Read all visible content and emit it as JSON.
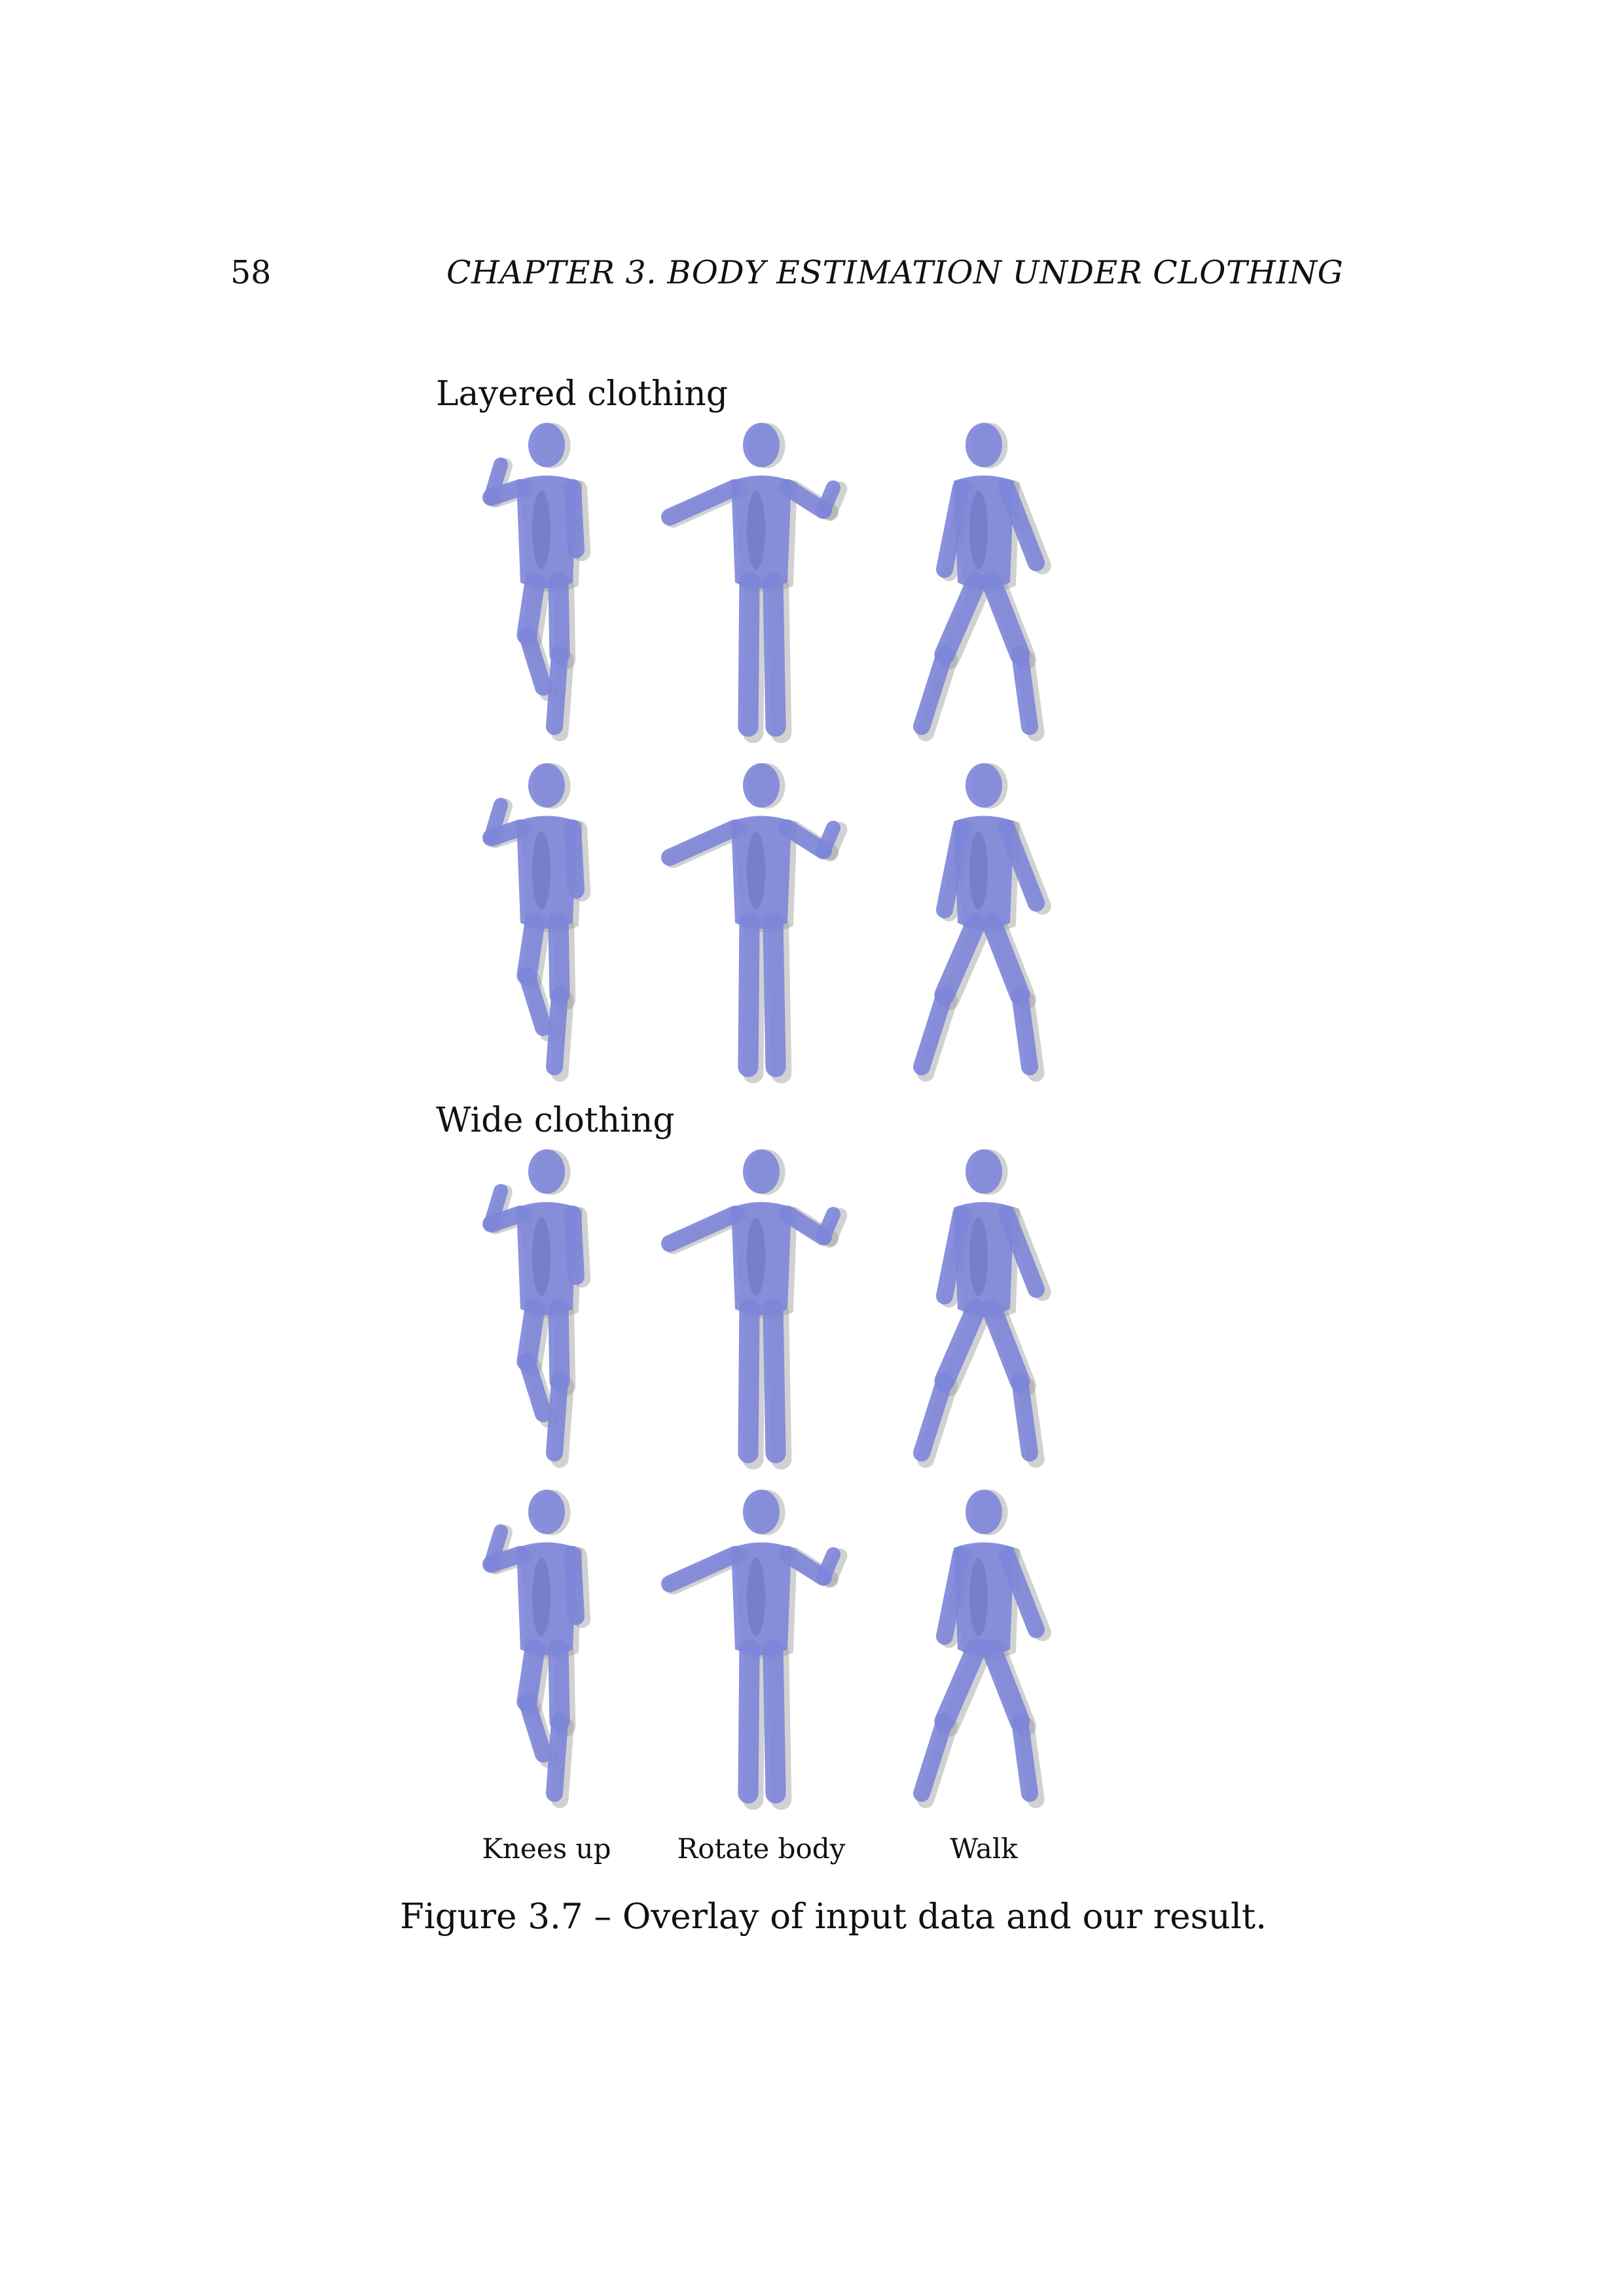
{
  "page": {
    "number": "58",
    "running_head": "CHAPTER 3.  BODY ESTIMATION UNDER CLOTHING"
  },
  "figure": {
    "sections": [
      {
        "label": "Layered clothing"
      },
      {
        "label": "Wide clothing"
      }
    ],
    "columns": [
      "Knees up",
      "Rotate body",
      "Walk"
    ],
    "caption": "Figure 3.7 – Overlay of input data and our result.",
    "colors": {
      "body": "#7d86d9",
      "body_shade": "#5c63b8",
      "clothing": "#9a9a9a"
    }
  }
}
